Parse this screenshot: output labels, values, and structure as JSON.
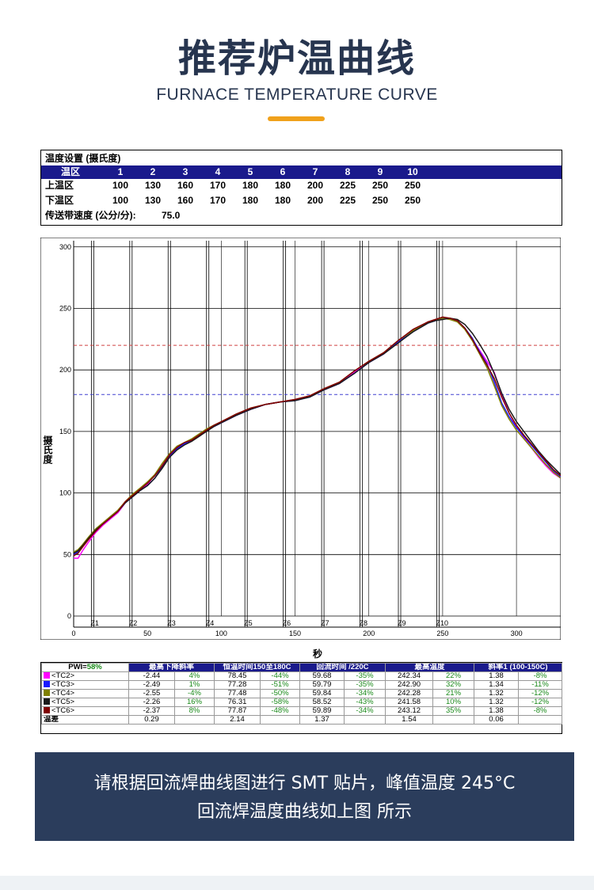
{
  "header": {
    "title": "推荐炉温曲线",
    "subtitle": "FURNACE TEMPERATURE CURVE",
    "accent_color": "#f0a11c"
  },
  "settings": {
    "title": "温度设置 (摄氏度)",
    "zone_label": "温区",
    "zones": [
      "1",
      "2",
      "3",
      "4",
      "5",
      "6",
      "7",
      "8",
      "9",
      "10"
    ],
    "upper_label": "上温区",
    "upper": [
      "100",
      "130",
      "160",
      "170",
      "180",
      "180",
      "200",
      "225",
      "250",
      "250"
    ],
    "lower_label": "下温区",
    "lower": [
      "100",
      "130",
      "160",
      "170",
      "180",
      "180",
      "200",
      "225",
      "250",
      "250"
    ],
    "speed_label": "传送带速度 (公分/分):",
    "speed_value": "75.0"
  },
  "chart_data": {
    "type": "line",
    "xlabel": "秒",
    "ylabel": "摄氏度",
    "xlim": [
      0,
      330
    ],
    "ylim": [
      0,
      305
    ],
    "x_ticks": [
      "0",
      "50",
      "100",
      "150",
      "200",
      "250",
      "300"
    ],
    "y_ticks": [
      "0",
      "50",
      "100",
      "150",
      "200",
      "250",
      "300"
    ],
    "zone_labels": [
      "Z1",
      "Z2",
      "Z3",
      "Z4",
      "Z5",
      "Z6",
      "Z7",
      "Z8",
      "Z9",
      "Z10"
    ],
    "zone_boundaries": [
      12,
      38,
      64,
      90,
      116,
      142,
      168,
      194,
      220,
      246
    ],
    "reference_lines": [
      {
        "y": 220,
        "color": "#d04040"
      },
      {
        "y": 180,
        "color": "#4040d0"
      }
    ],
    "grid": true,
    "series": [
      {
        "name": "<TC2>",
        "color": "#ff00ff",
        "x": [
          0,
          3,
          6,
          10,
          15,
          20,
          25,
          30,
          35,
          40,
          45,
          50,
          55,
          60,
          65,
          70,
          75,
          80,
          85,
          90,
          95,
          100,
          110,
          120,
          130,
          140,
          150,
          160,
          170,
          180,
          190,
          200,
          210,
          220,
          230,
          240,
          245,
          250,
          255,
          260,
          265,
          270,
          275,
          280,
          285,
          290,
          295,
          300,
          305,
          310,
          315,
          320,
          325,
          330
        ],
        "y": [
          47,
          47,
          53,
          60,
          68,
          74,
          79,
          84,
          92,
          98,
          103,
          107,
          115,
          123,
          131,
          137,
          140,
          143,
          147,
          151,
          154,
          157,
          163,
          168,
          172,
          174,
          176,
          179,
          184,
          189,
          198,
          206,
          213,
          223,
          232,
          239,
          241,
          242,
          242,
          240,
          234,
          225,
          216,
          207,
          198,
          180,
          165,
          154,
          145,
          137,
          129,
          122,
          116,
          112
        ]
      },
      {
        "name": "<TC3>",
        "color": "#1a1aff",
        "x": [
          0,
          3,
          6,
          10,
          15,
          20,
          25,
          30,
          35,
          40,
          45,
          50,
          55,
          60,
          65,
          70,
          75,
          80,
          85,
          90,
          95,
          100,
          110,
          120,
          130,
          140,
          150,
          160,
          170,
          180,
          190,
          200,
          210,
          220,
          230,
          240,
          245,
          250,
          255,
          260,
          265,
          270,
          275,
          280,
          285,
          290,
          295,
          300,
          305,
          310,
          315,
          320,
          325,
          330
        ],
        "y": [
          50,
          52,
          57,
          63,
          70,
          75,
          80,
          85,
          92,
          97,
          102,
          106,
          112,
          121,
          130,
          136,
          140,
          143,
          146,
          151,
          154,
          157,
          163,
          168,
          172,
          174,
          175,
          178,
          184,
          189,
          197,
          206,
          213,
          223,
          231,
          238,
          240,
          242,
          242,
          240,
          234,
          226,
          215,
          205,
          190,
          173,
          162,
          153,
          146,
          139,
          132,
          125,
          118,
          113
        ]
      },
      {
        "name": "<TC4>",
        "color": "#808000",
        "x": [
          0,
          3,
          6,
          10,
          15,
          20,
          25,
          30,
          35,
          40,
          45,
          50,
          55,
          60,
          65,
          70,
          75,
          80,
          85,
          90,
          95,
          100,
          110,
          120,
          130,
          140,
          150,
          160,
          170,
          180,
          190,
          200,
          210,
          220,
          230,
          240,
          245,
          250,
          255,
          260,
          265,
          270,
          275,
          280,
          285,
          290,
          295,
          300,
          305,
          310,
          315,
          320,
          325,
          330
        ],
        "y": [
          52,
          54,
          58,
          64,
          71,
          76,
          81,
          86,
          93,
          99,
          104,
          109,
          115,
          124,
          132,
          138,
          141,
          144,
          148,
          152,
          155,
          158,
          164,
          169,
          172,
          174,
          176,
          179,
          185,
          190,
          199,
          207,
          214,
          224,
          232,
          239,
          241,
          242,
          241,
          239,
          233,
          224,
          213,
          202,
          187,
          171,
          160,
          151,
          144,
          137,
          130,
          123,
          117,
          112
        ]
      },
      {
        "name": "<TC5>",
        "color": "#1a1a1a",
        "x": [
          0,
          3,
          6,
          10,
          15,
          20,
          25,
          30,
          35,
          40,
          45,
          50,
          55,
          60,
          65,
          70,
          75,
          80,
          85,
          90,
          95,
          100,
          110,
          120,
          130,
          140,
          150,
          160,
          170,
          180,
          190,
          200,
          210,
          220,
          230,
          240,
          245,
          250,
          255,
          260,
          265,
          270,
          275,
          280,
          285,
          290,
          295,
          300,
          305,
          310,
          315,
          320,
          325,
          330
        ],
        "y": [
          51,
          53,
          57,
          63,
          70,
          75,
          80,
          85,
          92,
          97,
          102,
          106,
          112,
          120,
          129,
          135,
          139,
          142,
          146,
          150,
          154,
          157,
          163,
          168,
          172,
          174,
          175,
          178,
          184,
          189,
          197,
          206,
          213,
          222,
          231,
          238,
          240,
          241,
          242,
          241,
          237,
          230,
          221,
          211,
          197,
          181,
          168,
          158,
          150,
          142,
          134,
          127,
          121,
          115
        ]
      },
      {
        "name": "<TC6>",
        "color": "#800000",
        "x": [
          0,
          3,
          6,
          10,
          15,
          20,
          25,
          30,
          35,
          40,
          45,
          50,
          55,
          60,
          65,
          70,
          75,
          80,
          85,
          90,
          95,
          100,
          110,
          120,
          130,
          140,
          150,
          160,
          170,
          180,
          190,
          200,
          210,
          220,
          230,
          240,
          245,
          250,
          255,
          260,
          265,
          270,
          275,
          280,
          285,
          290,
          295,
          300,
          305,
          310,
          315,
          320,
          325,
          330
        ],
        "y": [
          49,
          51,
          56,
          62,
          69,
          75,
          80,
          85,
          93,
          98,
          103,
          108,
          114,
          122,
          131,
          137,
          141,
          143,
          147,
          151,
          155,
          158,
          164,
          169,
          172,
          174,
          176,
          179,
          185,
          190,
          199,
          207,
          214,
          224,
          233,
          239,
          241,
          243,
          242,
          240,
          234,
          225,
          214,
          204,
          193,
          178,
          165,
          155,
          147,
          140,
          133,
          126,
          119,
          114
        ]
      }
    ]
  },
  "stats": {
    "pw_label": "PWI=",
    "pw_value": "58%",
    "headers": [
      "最高下降斜率",
      "恒温时间150至180C",
      "回流时间 /220C",
      "最高温度",
      "斜率1 (100-150C)"
    ],
    "rows": [
      {
        "label": "<TC2>",
        "color": "#ff00ff",
        "cells": [
          "-2.44",
          "4%",
          "78.45",
          "-44%",
          "59.68",
          "-35%",
          "242.34",
          "22%",
          "1.38",
          "-8%"
        ]
      },
      {
        "label": "<TC3>",
        "color": "#1a1aff",
        "cells": [
          "-2.49",
          "1%",
          "77.28",
          "-51%",
          "59.79",
          "-35%",
          "242.90",
          "32%",
          "1.34",
          "-11%"
        ]
      },
      {
        "label": "<TC4>",
        "color": "#808000",
        "cells": [
          "-2.55",
          "-4%",
          "77.48",
          "-50%",
          "59.84",
          "-34%",
          "242.28",
          "21%",
          "1.32",
          "-12%"
        ]
      },
      {
        "label": "<TC5>",
        "color": "#1a1a1a",
        "cells": [
          "-2.26",
          "16%",
          "76.31",
          "-58%",
          "58.52",
          "-43%",
          "241.58",
          "10%",
          "1.32",
          "-12%"
        ]
      },
      {
        "label": "<TC6>",
        "color": "#800000",
        "cells": [
          "-2.37",
          "8%",
          "77.87",
          "-48%",
          "59.89",
          "-34%",
          "243.12",
          "35%",
          "1.38",
          "-8%"
        ]
      }
    ],
    "delta_label": "温差",
    "delta": [
      "0.29",
      "",
      "2.14",
      "",
      "1.37",
      "",
      "1.54",
      "",
      "0.06",
      ""
    ]
  },
  "banner": {
    "line1": "请根据回流焊曲线图进行 SMT 贴片，峰值温度 245°C",
    "line2": "回流焊温度曲线如上图 所示"
  }
}
